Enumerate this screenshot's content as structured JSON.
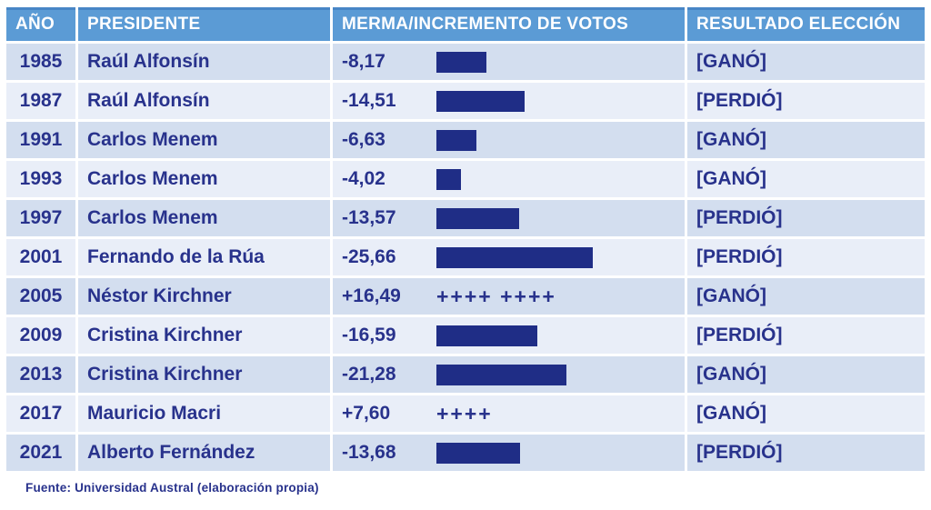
{
  "colors": {
    "header_bg": "#5b9bd5",
    "header_edge": "#4886c6",
    "header_text": "#ffffff",
    "row_dark": "#d3deef",
    "row_light": "#e9eef8",
    "ink": "#28328c",
    "bar": "#1f2d86"
  },
  "table": {
    "columns": [
      "AÑO",
      "PRESIDENTE",
      "MERMA/INCREMENTO DE VOTOS",
      "RESULTADO ELECCIÓN"
    ],
    "rows": [
      {
        "year": "1985",
        "president": "Raúl Alfonsín",
        "value": -8.17,
        "value_label": "-8,17",
        "marker": "",
        "result": "[GANÓ]"
      },
      {
        "year": "1987",
        "president": "Raúl Alfonsín",
        "value": -14.51,
        "value_label": "-14,51",
        "marker": "",
        "result": "[PERDIÓ]"
      },
      {
        "year": "1991",
        "president": "Carlos Menem",
        "value": -6.63,
        "value_label": "-6,63",
        "marker": "",
        "result": "[GANÓ]"
      },
      {
        "year": "1993",
        "president": "Carlos Menem",
        "value": -4.02,
        "value_label": "-4,02",
        "marker": "",
        "result": "[GANÓ]"
      },
      {
        "year": "1997",
        "president": "Carlos Menem",
        "value": -13.57,
        "value_label": "-13,57",
        "marker": "",
        "result": "[PERDIÓ]"
      },
      {
        "year": "2001",
        "president": "Fernando de la Rúa",
        "value": -25.66,
        "value_label": "-25,66",
        "marker": "",
        "result": "[PERDIÓ]"
      },
      {
        "year": "2005",
        "president": "Néstor Kirchner",
        "value": 16.49,
        "value_label": "+16,49",
        "marker": "++++ ++++",
        "result": "[GANÓ]"
      },
      {
        "year": "2009",
        "president": "Cristina Kirchner",
        "value": -16.59,
        "value_label": "-16,59",
        "marker": "",
        "result": "[PERDIÓ]"
      },
      {
        "year": "2013",
        "president": "Cristina Kirchner",
        "value": -21.28,
        "value_label": "-21,28",
        "marker": "",
        "result": "[GANÓ]"
      },
      {
        "year": "2017",
        "president": "Mauricio Macri",
        "value": 7.6,
        "value_label": "+7,60",
        "marker": "++++",
        "result": "[GANÓ]"
      },
      {
        "year": "2021",
        "president": "Alberto Fernández",
        "value": -13.68,
        "value_label": "-13,68",
        "marker": "",
        "result": "[PERDIÓ]"
      }
    ]
  },
  "footer": {
    "source": "Fuente: Universidad Austral (elaboración propia)"
  },
  "chart_data": {
    "type": "bar",
    "title": "MERMA/INCREMENTO DE VOTOS",
    "categories": [
      "1985",
      "1987",
      "1991",
      "1993",
      "1997",
      "2001",
      "2005",
      "2009",
      "2013",
      "2017",
      "2021"
    ],
    "series": [
      {
        "name": "Merma/incremento de votos",
        "values": [
          -8.17,
          -14.51,
          -6.63,
          -4.02,
          -13.57,
          -25.66,
          16.49,
          -16.59,
          -21.28,
          7.6,
          -13.68
        ]
      }
    ],
    "annotations": {
      "presidents": [
        "Raúl Alfonsín",
        "Raúl Alfonsín",
        "Carlos Menem",
        "Carlos Menem",
        "Carlos Menem",
        "Fernando de la Rúa",
        "Néstor Kirchner",
        "Cristina Kirchner",
        "Cristina Kirchner",
        "Mauricio Macri",
        "Alberto Fernández"
      ],
      "results": [
        "[GANÓ]",
        "[PERDIÓ]",
        "[GANÓ]",
        "[GANÓ]",
        "[PERDIÓ]",
        "[PERDIÓ]",
        "[GANÓ]",
        "[PERDIÓ]",
        "[GANÓ]",
        "[GANÓ]",
        "[PERDIÓ]"
      ],
      "positive_values_shown_as": "plus signs instead of bars"
    },
    "xlabel": "",
    "ylabel": "",
    "legend": false,
    "grid": false
  }
}
